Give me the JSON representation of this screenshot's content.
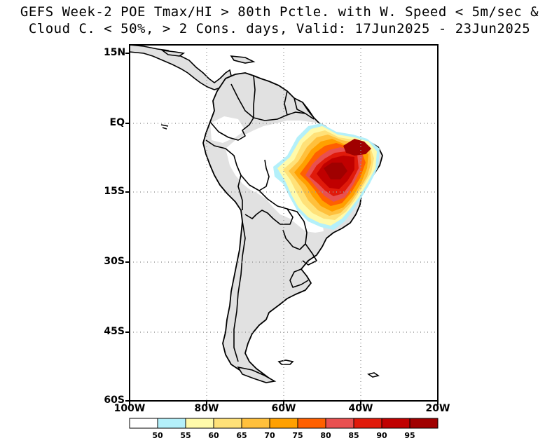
{
  "title": {
    "line1": "GEFS Week-2 POE Tmax/HI > 80th Pctle. with W. Speed < 5m/sec &",
    "line2": "Cloud C. < 50%, > 2 Cons. days, Valid: 17Jun2025 - 23Jun2025"
  },
  "axes": {
    "lat_labels": [
      "15N",
      "EQ",
      "15S",
      "30S",
      "45S",
      "60S"
    ],
    "lon_labels": [
      "100W",
      "80W",
      "60W",
      "40W",
      "20W"
    ]
  },
  "colorbar": {
    "labels": [
      "50",
      "55",
      "60",
      "65",
      "70",
      "75",
      "80",
      "85",
      "90",
      "95"
    ],
    "colors": [
      "#ffffff",
      "#b4f0fa",
      "#fffaaa",
      "#ffe178",
      "#ffc03c",
      "#ffa000",
      "#ff6000",
      "#e85050",
      "#e01a0a",
      "#c00000",
      "#a00000"
    ]
  },
  "map": {
    "land_color": "#e1e1e1",
    "projection_bounds": "100W-20W, 60S-15N"
  }
}
